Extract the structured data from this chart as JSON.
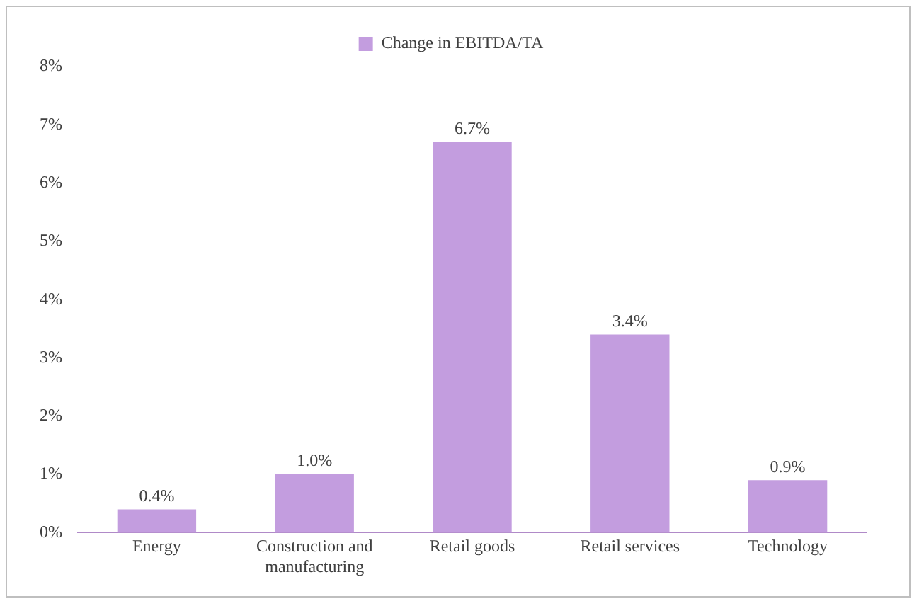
{
  "chart_data": {
    "type": "bar",
    "categories": [
      "Energy",
      "Construction and manufacturing",
      "Retail goods",
      "Retail services",
      "Technology"
    ],
    "series": [
      {
        "name": "Change in EBITDA/TA",
        "color": "#c39ddf",
        "values": [
          0.4,
          1.0,
          6.7,
          3.4,
          0.9
        ],
        "value_labels": [
          "0.4%",
          "1.0%",
          "6.7%",
          "3.4%",
          "0.9%"
        ]
      }
    ],
    "ylim": [
      0,
      8
    ],
    "yticks": [
      {
        "value": 0,
        "label": "0%"
      },
      {
        "value": 1,
        "label": "1%"
      },
      {
        "value": 2,
        "label": "2%"
      },
      {
        "value": 3,
        "label": "3%"
      },
      {
        "value": 4,
        "label": "4%"
      },
      {
        "value": 5,
        "label": "5%"
      },
      {
        "value": 6,
        "label": "6%"
      },
      {
        "value": 7,
        "label": "7%"
      },
      {
        "value": 8,
        "label": "8%"
      }
    ],
    "grid": false,
    "legend": "top"
  }
}
